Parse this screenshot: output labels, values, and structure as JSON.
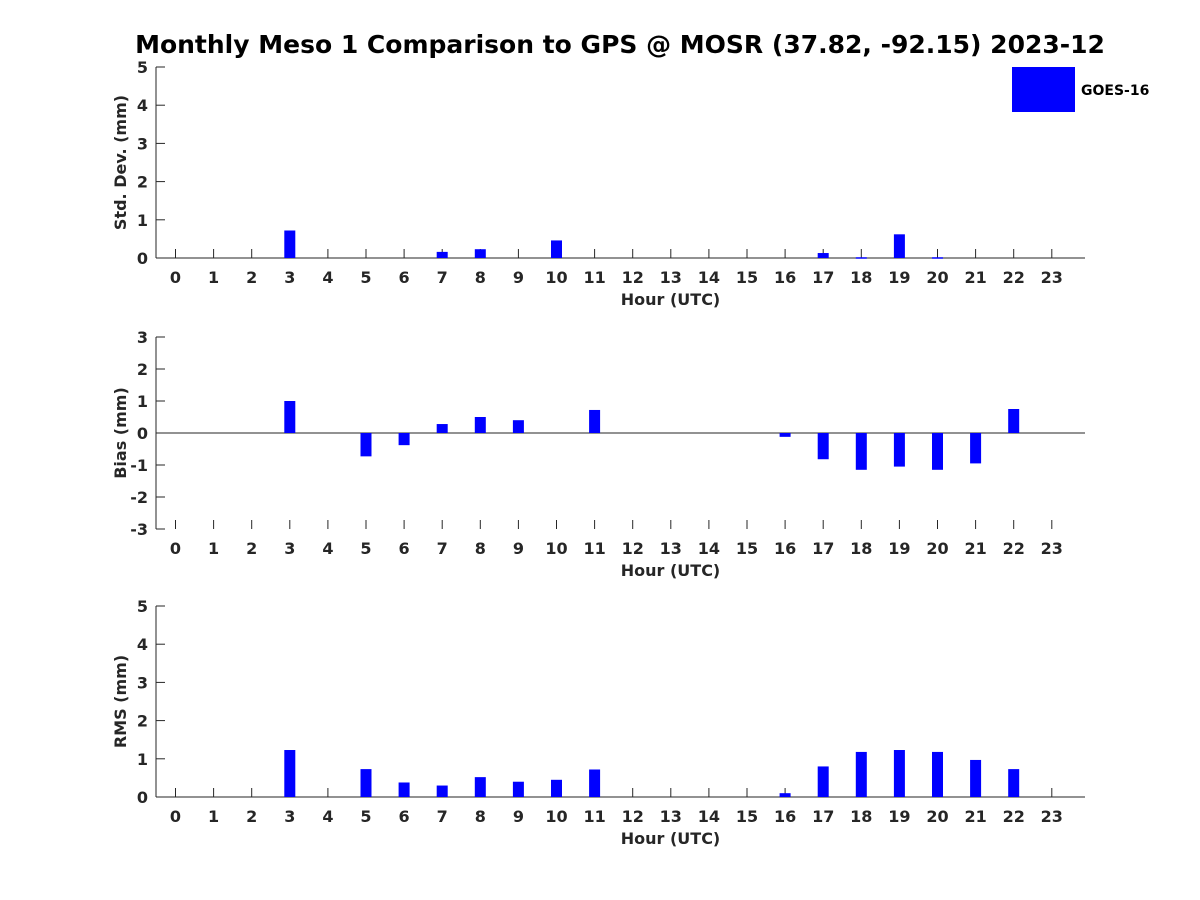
{
  "title": "Monthly Meso 1 Comparison to GPS @ MOSR (37.82, -92.15) 2023-12",
  "legend": {
    "label": "GOES-16",
    "placement": "top-right",
    "color": "#0000ff"
  },
  "colors": {
    "bar": "#0000ff",
    "axis": "#262626"
  },
  "chart_data": [
    {
      "type": "bar",
      "x": [
        0,
        1,
        2,
        3,
        4,
        5,
        6,
        7,
        8,
        9,
        10,
        11,
        12,
        13,
        14,
        15,
        16,
        17,
        18,
        19,
        20,
        21,
        22,
        23
      ],
      "xticklabels": [
        "0",
        "1",
        "2",
        "3",
        "4",
        "5",
        "6",
        "7",
        "8",
        "9",
        "10",
        "11",
        "12",
        "13",
        "14",
        "15",
        "16",
        "17",
        "18",
        "19",
        "20",
        "21",
        "22",
        "23"
      ],
      "series": [
        {
          "name": "GOES-16",
          "values": [
            0,
            0,
            0,
            0.72,
            0,
            0,
            0,
            0.16,
            0.23,
            0,
            0.46,
            0,
            0,
            0,
            0,
            0,
            0,
            0.13,
            0.02,
            0.62,
            0.02,
            0,
            0,
            0
          ]
        }
      ],
      "xlabel": "Hour (UTC)",
      "ylabel": "Std. Dev. (mm)",
      "ylim": [
        0,
        5
      ],
      "yticks": [
        0,
        1,
        2,
        3,
        4,
        5
      ],
      "grid": false
    },
    {
      "type": "bar",
      "x": [
        0,
        1,
        2,
        3,
        4,
        5,
        6,
        7,
        8,
        9,
        10,
        11,
        12,
        13,
        14,
        15,
        16,
        17,
        18,
        19,
        20,
        21,
        22,
        23
      ],
      "xticklabels": [
        "0",
        "1",
        "2",
        "3",
        "4",
        "5",
        "6",
        "7",
        "8",
        "9",
        "10",
        "11",
        "12",
        "13",
        "14",
        "15",
        "16",
        "17",
        "18",
        "19",
        "20",
        "21",
        "22",
        "23"
      ],
      "series": [
        {
          "name": "GOES-16",
          "values": [
            0,
            0,
            0,
            1.0,
            0,
            -0.73,
            -0.38,
            0.28,
            0.5,
            0.4,
            0,
            0.72,
            0,
            0,
            0,
            0,
            -0.12,
            -0.82,
            -1.15,
            -1.05,
            -1.15,
            -0.95,
            0.75,
            0
          ]
        }
      ],
      "xlabel": "Hour (UTC)",
      "ylabel": "Bias (mm)",
      "ylim": [
        -3,
        3
      ],
      "yticks": [
        -3,
        -2,
        -1,
        0,
        1,
        2,
        3
      ],
      "grid": false
    },
    {
      "type": "bar",
      "x": [
        0,
        1,
        2,
        3,
        4,
        5,
        6,
        7,
        8,
        9,
        10,
        11,
        12,
        13,
        14,
        15,
        16,
        17,
        18,
        19,
        20,
        21,
        22,
        23
      ],
      "xticklabels": [
        "0",
        "1",
        "2",
        "3",
        "4",
        "5",
        "6",
        "7",
        "8",
        "9",
        "10",
        "11",
        "12",
        "13",
        "14",
        "15",
        "16",
        "17",
        "18",
        "19",
        "20",
        "21",
        "22",
        "23"
      ],
      "series": [
        {
          "name": "GOES-16",
          "values": [
            0,
            0,
            0,
            1.23,
            0,
            0.73,
            0.38,
            0.3,
            0.52,
            0.4,
            0.45,
            0.72,
            0,
            0,
            0,
            0,
            0.1,
            0.8,
            1.18,
            1.23,
            1.18,
            0.97,
            0.73,
            0
          ]
        }
      ],
      "xlabel": "Hour (UTC)",
      "ylabel": "RMS (mm)",
      "ylim": [
        0,
        5
      ],
      "yticks": [
        0,
        1,
        2,
        3,
        4,
        5
      ],
      "grid": false
    }
  ]
}
